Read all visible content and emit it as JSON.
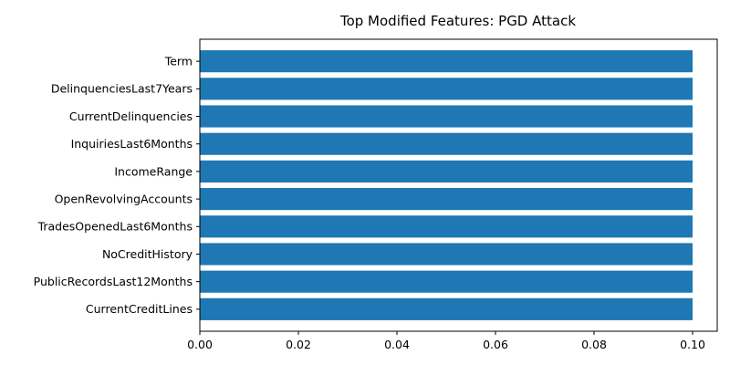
{
  "chart_data": {
    "type": "bar",
    "orientation": "horizontal",
    "title": "Top Modified Features: PGD Attack",
    "xlabel": "",
    "ylabel": "",
    "categories": [
      "Term",
      "DelinquenciesLast7Years",
      "CurrentDelinquencies",
      "InquiriesLast6Months",
      "IncomeRange",
      "OpenRevolvingAccounts",
      "TradesOpenedLast6Months",
      "NoCreditHistory",
      "PublicRecordsLast12Months",
      "CurrentCreditLines"
    ],
    "values": [
      0.1,
      0.1,
      0.1,
      0.1,
      0.1,
      0.1,
      0.1,
      0.1,
      0.1,
      0.1
    ],
    "xlim": [
      0.0,
      0.105
    ],
    "xticks": [
      "0.00",
      "0.02",
      "0.04",
      "0.06",
      "0.08",
      "0.10"
    ],
    "grid": false,
    "bar_color": "#1f77b4"
  }
}
